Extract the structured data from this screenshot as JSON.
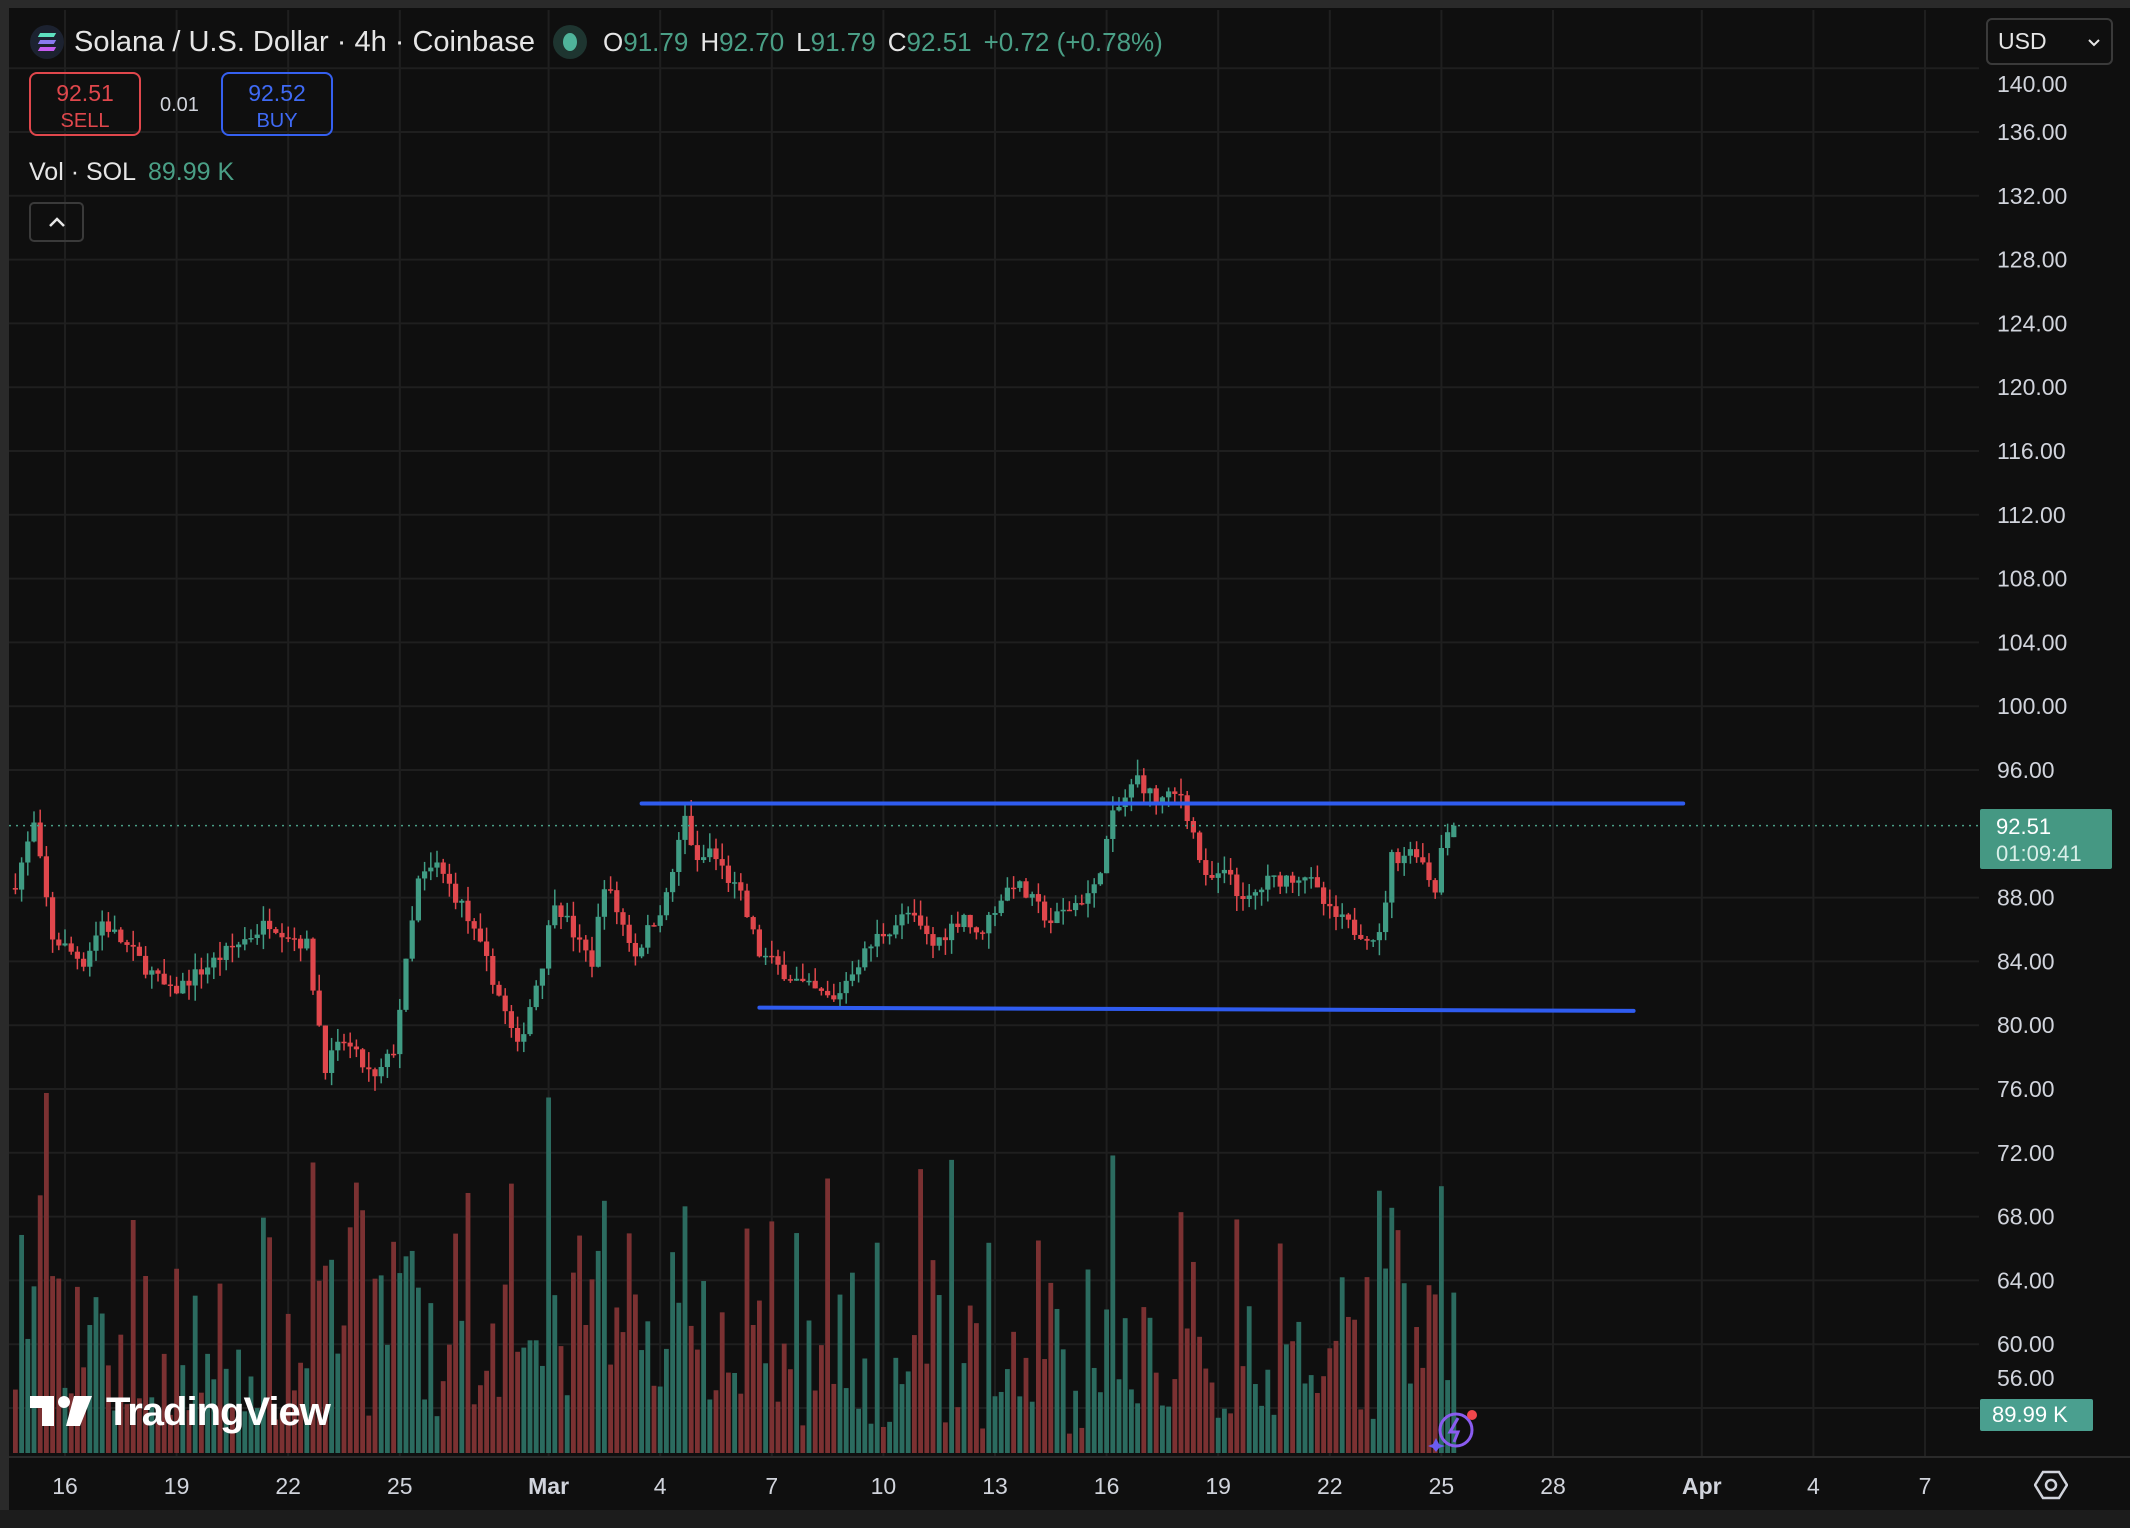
{
  "header": {
    "title": "Solana / U.S. Dollar · 4h · Coinbase",
    "symbol_icon": "solana-logo-icon",
    "market_status_icon": "market-open-dot-icon",
    "ohlc": {
      "o_label": "O",
      "o": "91.79",
      "h_label": "H",
      "h": "92.70",
      "l_label": "L",
      "l": "91.79",
      "c_label": "C",
      "c": "92.51",
      "change": "+0.72 (+0.78%)"
    }
  },
  "trade": {
    "sell_price": "92.51",
    "sell_label": "SELL",
    "spread": "0.01",
    "buy_price": "92.52",
    "buy_label": "BUY"
  },
  "volume_legend": {
    "label": "Vol · SOL",
    "value": "89.99 K"
  },
  "collapse_icon": "chevron-up-icon",
  "currency_select": {
    "value": "USD"
  },
  "current_price": {
    "price": "92.51",
    "countdown": "01:09:41"
  },
  "volume_badge": "89.99 K",
  "watermark": "TradingView",
  "colors": {
    "up": "#409c84",
    "down": "#e0474c",
    "trendline": "#2f5cf0",
    "background": "#0f0f0f"
  },
  "chart_data": {
    "type": "candlestick",
    "interval": "4h",
    "price_ticks": [
      "56.00",
      "60.00",
      "64.00",
      "68.00",
      "72.00",
      "76.00",
      "80.00",
      "84.00",
      "88.00",
      "96.00",
      "100.00",
      "104.00",
      "108.00",
      "112.00",
      "116.00",
      "120.00",
      "124.00",
      "128.00",
      "132.00",
      "136.00",
      "140.00"
    ],
    "ylim": [
      54,
      142
    ],
    "time_ticks": [
      {
        "label": "16",
        "date": "Feb 16"
      },
      {
        "label": "19",
        "date": "Feb 19"
      },
      {
        "label": "22",
        "date": "Feb 22"
      },
      {
        "label": "25",
        "date": "Feb 25"
      },
      {
        "label": "Mar",
        "date": "Mar 1"
      },
      {
        "label": "4",
        "date": "Mar 4"
      },
      {
        "label": "7",
        "date": "Mar 7"
      },
      {
        "label": "10",
        "date": "Mar 10"
      },
      {
        "label": "13",
        "date": "Mar 13"
      },
      {
        "label": "16",
        "date": "Mar 16"
      },
      {
        "label": "19",
        "date": "Mar 19"
      },
      {
        "label": "22",
        "date": "Mar 22"
      },
      {
        "label": "25",
        "date": "Mar 25"
      },
      {
        "label": "28",
        "date": "Mar 28"
      },
      {
        "label": "Apr",
        "date": "Apr 1"
      },
      {
        "label": "4",
        "date": "Apr 4"
      },
      {
        "label": "7",
        "date": "Apr 7"
      }
    ],
    "close_path": [
      [
        "Feb 14 16:00",
        89
      ],
      [
        "Feb 15 04:00",
        92.5
      ],
      [
        "Feb 15 16:00",
        85.5
      ],
      [
        "Feb 16 12:00",
        84
      ],
      [
        "Feb 17 00:00",
        86.5
      ],
      [
        "Feb 17 20:00",
        84.5
      ],
      [
        "Feb 18 20:00",
        82
      ],
      [
        "Feb 20 00:00",
        84
      ],
      [
        "Feb 21 12:00",
        86.5
      ],
      [
        "Feb 22 12:00",
        85
      ],
      [
        "Feb 23 00:00",
        77.5
      ],
      [
        "Feb 23 12:00",
        79
      ],
      [
        "Feb 24 08:00",
        76.5
      ],
      [
        "Feb 24 20:00",
        78.5
      ],
      [
        "Feb 25 12:00",
        89
      ],
      [
        "Feb 26 00:00",
        90
      ],
      [
        "Feb 26 16:00",
        87.5
      ],
      [
        "Feb 27 12:00",
        83
      ],
      [
        "Feb 28 04:00",
        78.5
      ],
      [
        "Feb 28 20:00",
        84
      ],
      [
        "Mar 1 04:00",
        88
      ],
      [
        "Mar 1 20:00",
        85
      ],
      [
        "Mar 2 04:00",
        84
      ],
      [
        "Mar 2 12:00",
        89
      ],
      [
        "Mar 3 08:00",
        84.5
      ],
      [
        "Mar 4 04:00",
        88
      ],
      [
        "Mar 4 16:00",
        93
      ],
      [
        "Mar 5 00:00",
        90
      ],
      [
        "Mar 5 08:00",
        91
      ],
      [
        "Mar 6 04:00",
        88
      ],
      [
        "Mar 6 16:00",
        84.5
      ],
      [
        "Mar 7 20:00",
        82.5
      ],
      [
        "Mar 8 16:00",
        81.5
      ],
      [
        "Mar 9 04:00",
        83.5
      ],
      [
        "Mar 9 20:00",
        85.5
      ],
      [
        "Mar 10 16:00",
        87
      ],
      [
        "Mar 11 08:00",
        85
      ],
      [
        "Mar 12 04:00",
        87
      ],
      [
        "Mar 12 12:00",
        85.5
      ],
      [
        "Mar 13 04:00",
        88
      ],
      [
        "Mar 13 12:00",
        89
      ],
      [
        "Mar 14 12:00",
        86.5
      ],
      [
        "Mar 15 16:00",
        88.5
      ],
      [
        "Mar 16 04:00",
        93
      ],
      [
        "Mar 16 20:00",
        95.5
      ],
      [
        "Mar 17 08:00",
        94
      ],
      [
        "Mar 18 00:00",
        94.5
      ],
      [
        "Mar 18 08:00",
        92
      ],
      [
        "Mar 18 16:00",
        89
      ],
      [
        "Mar 19 08:00",
        89.5
      ],
      [
        "Mar 19 16:00",
        87.5
      ],
      [
        "Mar 20 08:00",
        89
      ],
      [
        "Mar 21 08:00",
        89.5
      ],
      [
        "Mar 22 00:00",
        87
      ],
      [
        "Mar 22 16:00",
        86
      ],
      [
        "Mar 23 08:00",
        85.5
      ],
      [
        "Mar 23 16:00",
        90.5
      ],
      [
        "Mar 24 08:00",
        91
      ],
      [
        "Mar 24 20:00",
        88.5
      ],
      [
        "Mar 25 00:00",
        91.5
      ],
      [
        "Mar 25 08:00",
        92.51
      ]
    ],
    "last_candle": {
      "open": 91.79,
      "high": 92.7,
      "low": 91.79,
      "close": 92.51
    },
    "last_price_line": 92.51,
    "trendlines": [
      {
        "name": "resistance",
        "from": "Mar 3 12:00",
        "to": "Mar 31 12:00",
        "price": 93.9
      },
      {
        "name": "support",
        "from": "Mar 6 16:00",
        "to": "Mar 30 04:00",
        "price_start": 81.1,
        "price_end": 80.9
      }
    ],
    "volume_last": "89.99 K",
    "grid": true
  }
}
